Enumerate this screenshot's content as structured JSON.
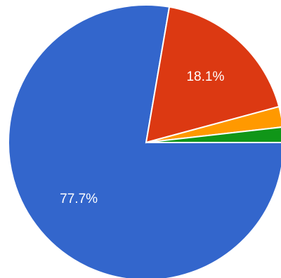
{
  "chart_data": {
    "type": "pie",
    "categories": [
      null,
      null,
      null,
      null
    ],
    "values": [
      77.7,
      18.1,
      2.4,
      1.8
    ],
    "value_labels": [
      "77.7%",
      "18.1%",
      null,
      null
    ],
    "colors": [
      "#3366cc",
      "#dc3912",
      "#ff9900",
      "#109618"
    ]
  }
}
